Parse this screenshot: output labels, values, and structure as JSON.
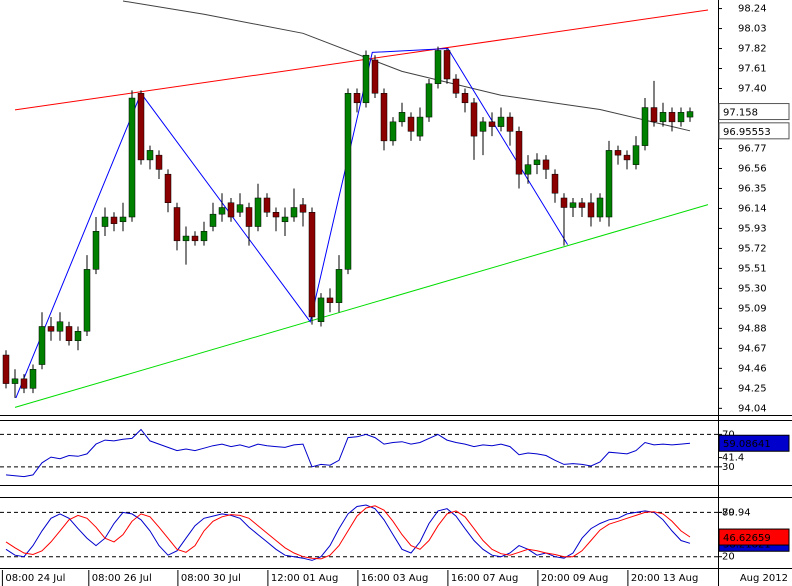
{
  "chart_data": [
    {
      "type": "candlestick",
      "open": [
        94.6,
        94.3,
        94.35,
        94.25,
        94.5,
        94.9,
        94.85,
        94.9,
        94.75,
        94.85,
        95.5,
        95.95,
        96.05,
        96.0,
        96.05,
        97.35,
        96.65,
        96.7,
        96.5,
        96.15,
        95.8,
        95.85,
        95.8,
        95.95,
        96.08,
        96.2,
        96.1,
        96.15,
        95.95,
        96.25,
        96.1,
        96.0,
        96.05,
        96.18,
        96.1,
        94.95,
        95.2,
        95.15,
        95.5,
        97.35,
        97.25,
        97.7,
        97.35,
        96.85,
        97.05,
        97.1,
        96.9,
        97.1,
        97.45,
        97.8,
        97.5,
        97.35,
        97.25,
        96.95,
        97.05,
        97.0,
        97.1,
        96.95,
        96.5,
        96.6,
        96.65,
        96.5,
        96.25,
        96.15,
        96.2,
        96.2,
        96.05,
        96.05,
        96.75,
        96.7,
        96.6,
        96.8,
        97.2,
        97.05,
        97.15,
        97.05,
        97.1
      ],
      "high": [
        94.65,
        94.45,
        94.4,
        94.5,
        95.05,
        95.0,
        95.05,
        94.95,
        94.9,
        95.65,
        96.05,
        96.15,
        96.1,
        96.2,
        97.38,
        97.38,
        96.8,
        96.75,
        96.55,
        96.2,
        95.95,
        95.9,
        96.0,
        96.2,
        96.3,
        96.25,
        96.3,
        96.2,
        96.4,
        96.3,
        96.15,
        96.15,
        96.35,
        96.25,
        96.15,
        95.25,
        95.3,
        95.65,
        97.4,
        97.4,
        97.8,
        97.75,
        97.4,
        97.1,
        97.25,
        97.15,
        97.2,
        97.5,
        97.84,
        97.82,
        97.55,
        97.4,
        97.3,
        97.1,
        97.15,
        97.2,
        97.15,
        97.0,
        96.7,
        96.72,
        96.7,
        96.55,
        96.3,
        96.25,
        96.25,
        96.3,
        96.3,
        96.85,
        96.8,
        96.75,
        96.9,
        97.3,
        97.48,
        97.25,
        97.2,
        97.2,
        97.2
      ],
      "low": [
        94.25,
        94.15,
        94.2,
        94.2,
        94.45,
        94.75,
        94.75,
        94.7,
        94.65,
        94.8,
        95.45,
        95.85,
        95.9,
        95.9,
        96.0,
        96.6,
        96.55,
        96.45,
        96.1,
        95.7,
        95.55,
        95.75,
        95.75,
        95.9,
        96.0,
        96.0,
        96.05,
        95.75,
        95.9,
        96.05,
        95.9,
        95.85,
        96.0,
        95.95,
        94.92,
        94.9,
        95.05,
        95.05,
        95.45,
        97.15,
        97.2,
        97.3,
        96.75,
        96.8,
        97.0,
        96.85,
        96.85,
        97.05,
        97.4,
        97.45,
        97.3,
        97.15,
        96.65,
        96.7,
        96.9,
        96.95,
        96.8,
        96.35,
        96.4,
        96.5,
        96.45,
        96.2,
        95.75,
        96.05,
        96.05,
        95.95,
        96.0,
        95.95,
        96.6,
        96.55,
        96.55,
        96.75,
        97.0,
        97.0,
        96.95,
        97.0,
        97.05
      ],
      "close": [
        94.3,
        94.35,
        94.25,
        94.45,
        94.9,
        94.85,
        94.95,
        94.75,
        94.85,
        95.5,
        95.9,
        96.05,
        95.98,
        96.05,
        97.3,
        96.65,
        96.75,
        96.55,
        96.2,
        95.8,
        95.85,
        95.8,
        95.9,
        96.08,
        96.15,
        96.05,
        96.18,
        95.95,
        96.25,
        96.1,
        96.05,
        96.05,
        96.15,
        96.1,
        95.0,
        95.2,
        95.15,
        95.5,
        97.35,
        97.25,
        97.75,
        97.35,
        96.85,
        97.05,
        97.15,
        96.95,
        97.1,
        97.45,
        97.8,
        97.5,
        97.35,
        97.25,
        96.9,
        97.05,
        97.0,
        97.1,
        96.95,
        96.5,
        96.6,
        96.65,
        96.55,
        96.3,
        96.15,
        96.2,
        96.15,
        96.05,
        96.25,
        96.75,
        96.7,
        96.65,
        96.8,
        97.2,
        97.05,
        97.15,
        97.05,
        97.15,
        97.158
      ],
      "up_color": "#008000",
      "down_color": "#8b0000",
      "ylim": [
        93.97,
        98.33
      ],
      "yticks": [
        94.04,
        94.25,
        94.46,
        94.67,
        94.88,
        95.09,
        {
          "value": 95.3,
          "label": "95.30"
        },
        95.51,
        95.72,
        95.93,
        96.14,
        96.35,
        96.56,
        96.77,
        {
          "value": 97.4,
          "label": "97.40"
        },
        97.61,
        97.82,
        98.03,
        98.24
      ],
      "moving_average": {
        "color": "#404040",
        "x": [
          13,
          22,
          33,
          44,
          55,
          66,
          76
        ],
        "values": [
          98.32,
          98.18,
          97.98,
          97.58,
          97.33,
          97.18,
          96.95553
        ]
      },
      "trend_lines": [
        {
          "color": "#ff0000",
          "x": [
            1,
            78
          ],
          "values": [
            97.175,
            98.225
          ]
        },
        {
          "color": "#00dd00",
          "x": [
            1,
            78
          ],
          "values": [
            94.05,
            96.18
          ]
        },
        {
          "color": "#0000ff",
          "x": [
            1.1,
            15,
            33.8,
            40.7,
            49.1,
            62.4
          ],
          "values": [
            94.15,
            97.35,
            94.95,
            97.78,
            97.82,
            95.76
          ]
        }
      ]
    },
    {
      "type": "line",
      "series": [
        {
          "color": "#0000cc",
          "values": [
            20,
            19,
            18,
            20,
            35,
            42,
            40,
            44,
            43,
            46,
            58,
            63,
            62,
            64,
            65,
            76,
            62,
            58,
            54,
            50,
            52,
            50,
            53,
            56,
            58,
            55,
            57,
            54,
            58,
            56,
            55,
            54,
            57,
            58,
            30,
            33,
            32,
            38,
            66,
            67,
            70,
            66,
            58,
            60,
            61,
            58,
            60,
            65,
            70,
            63,
            60,
            58,
            55,
            57,
            56,
            58,
            55,
            45,
            47,
            46,
            44,
            38,
            33,
            34,
            33,
            31,
            36,
            48,
            47,
            46,
            50,
            60,
            57,
            58,
            57,
            58,
            59.08641
          ]
        }
      ],
      "ylim": [
        7.6,
        86.5
      ],
      "yticks": [
        30,
        41.4,
        70
      ],
      "levels": [
        30,
        70
      ]
    },
    {
      "type": "line",
      "series": [
        {
          "color": "#0000cc",
          "values": [
            30,
            22,
            20,
            35,
            55,
            72,
            78,
            72,
            58,
            45,
            35,
            45,
            65,
            80,
            78,
            70,
            55,
            35,
            22,
            28,
            45,
            62,
            72,
            75,
            78,
            76,
            72,
            60,
            50,
            40,
            30,
            22,
            20,
            18,
            15,
            20,
            35,
            58,
            78,
            88,
            90,
            85,
            70,
            50,
            30,
            25,
            40,
            65,
            82,
            85,
            75,
            58,
            42,
            30,
            22,
            20,
            25,
            35,
            30,
            22,
            25,
            20,
            18,
            25,
            45,
            58,
            65,
            70,
            72,
            78,
            80,
            82,
            80,
            70,
            55,
            42,
            38.21821
          ]
        },
        {
          "color": "#ff0000",
          "values": [
            40,
            32,
            25,
            23,
            28,
            40,
            55,
            70,
            76,
            72,
            60,
            45,
            40,
            50,
            68,
            78,
            74,
            60,
            45,
            30,
            26,
            35,
            55,
            68,
            74,
            77,
            76,
            72,
            62,
            52,
            42,
            32,
            25,
            20,
            18,
            17,
            22,
            35,
            55,
            75,
            86,
            89,
            83,
            68,
            50,
            35,
            30,
            42,
            62,
            78,
            82,
            74,
            58,
            42,
            30,
            24,
            22,
            26,
            30,
            28,
            25,
            23,
            20,
            20,
            28,
            42,
            56,
            64,
            68,
            72,
            76,
            80,
            81,
            78,
            68,
            55,
            46.62659
          ]
        }
      ],
      "ylim": [
        4.7,
        99.5
      ],
      "yticks": [
        20,
        79.94,
        80
      ],
      "levels": [
        20,
        80
      ],
      "xticks": [
        {
          "value": -0.4,
          "label": "08:00 24 Jul"
        },
        {
          "value": 9.2,
          "label": "08:00 26 Jul"
        },
        {
          "value": 19.1,
          "label": "08:00 30 Jul"
        },
        {
          "value": 29.1,
          "label": "12:00 01 Aug"
        },
        {
          "value": 39.1,
          "label": "16:00 03 Aug"
        },
        {
          "value": 49.1,
          "label": "16:00 07 Aug"
        },
        {
          "value": 59.1,
          "label": "20:00 09 Aug"
        },
        {
          "value": 69.1,
          "label": "20:00 13 Aug"
        }
      ],
      "x_axis_label": "Aug 2012"
    }
  ]
}
